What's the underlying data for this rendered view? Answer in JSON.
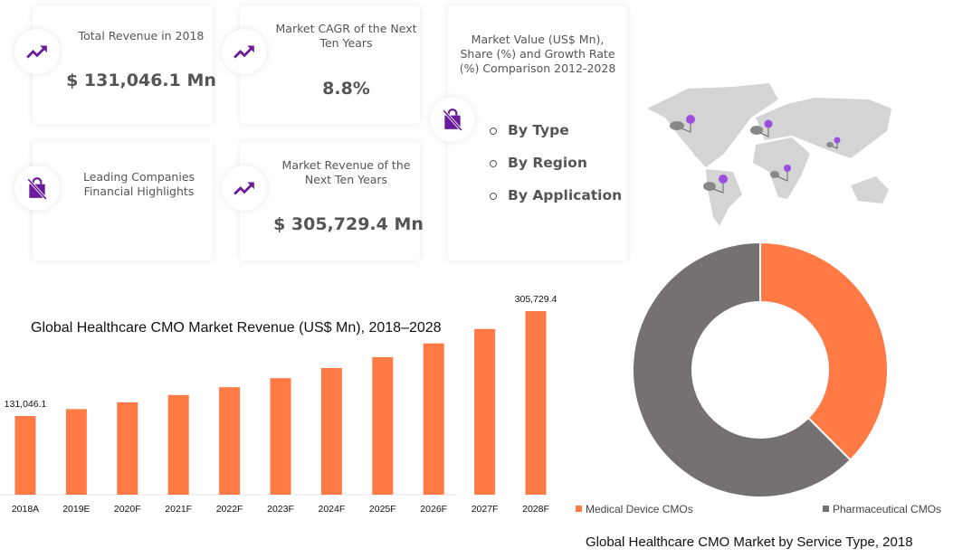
{
  "cards": {
    "total_revenue": {
      "label": "Total Revenue in 2018",
      "value": "$ 131,046.1 Mn",
      "icon": "trending-up-icon"
    },
    "cagr": {
      "label": "Market CAGR of the Next Ten Years",
      "value": "8.8%",
      "icon": "trending-up-icon"
    },
    "leading": {
      "label": "Leading Companies Financial Highlights",
      "icon": "shopping-bag-off-icon"
    },
    "future_revenue": {
      "label": "Market Revenue of the Next Ten Years",
      "value": "$ 305,729.4 Mn",
      "icon": "trending-up-icon"
    },
    "comparison": {
      "label": "Market Value (US$ Mn), Share (%) and Growth Rate (%) Comparison 2012-2028",
      "items": [
        "By Type",
        "By Region",
        "By Application"
      ],
      "icon": "shopping-bag-off-icon"
    }
  },
  "colors": {
    "accent": "#6a1b9a",
    "orange": "#ff7a45",
    "grey": "#767171"
  },
  "chart_data": [
    {
      "type": "bar",
      "title": "Global Healthcare CMO Market Revenue (US$ Mn), 2018–2028",
      "categories": [
        "2018A",
        "2019E",
        "2020F",
        "2021F",
        "2022F",
        "2023F",
        "2024F",
        "2025F",
        "2026F",
        "2027F",
        "2028F"
      ],
      "values": [
        131046.1,
        142600,
        153800,
        166000,
        179000,
        194000,
        211000,
        229000,
        252000,
        276000,
        305729.4
      ],
      "data_labels": {
        "first": "131,046.1",
        "last": "305,729.4"
      },
      "ylim": [
        0,
        320000
      ],
      "xlabel": "",
      "ylabel": ""
    },
    {
      "type": "pie",
      "title": "Global Healthcare CMO Market by Service Type, 2018",
      "series": [
        {
          "name": "Medical Device CMOs",
          "value": 37.5,
          "color": "#ff7a45"
        },
        {
          "name": "Pharmaceutical CMOs",
          "value": 62.5,
          "color": "#767171"
        }
      ],
      "legend": "bottom"
    }
  ]
}
